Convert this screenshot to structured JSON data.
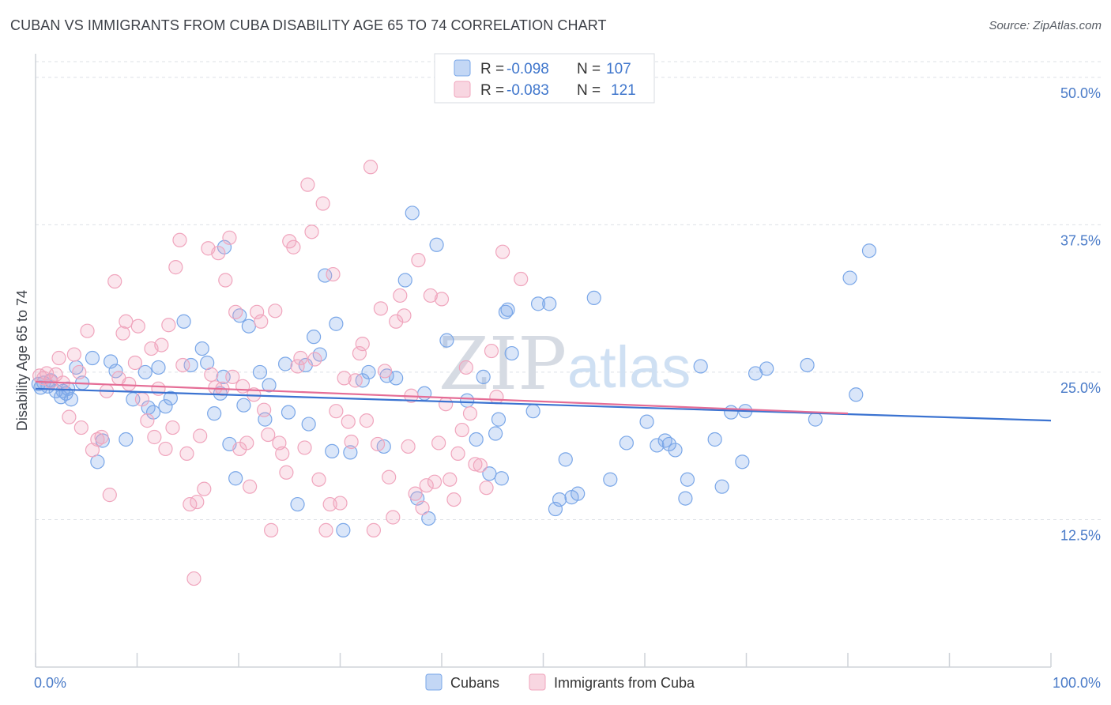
{
  "title": "CUBAN VS IMMIGRANTS FROM CUBA DISABILITY AGE 65 TO 74 CORRELATION CHART",
  "source": "Source: ZipAtlas.com",
  "watermark": {
    "zip": "ZIP",
    "atlas": "atlas"
  },
  "legend": {
    "rows": [
      {
        "r_label": "R =",
        "r_value": "-0.098",
        "n_label": "N =",
        "n_value": "107",
        "color": "#7aa7e8"
      },
      {
        "r_label": "R =",
        "r_value": "-0.083",
        "n_label": "N =",
        "n_value": "121",
        "color": "#f0a5bd"
      }
    ]
  },
  "chart_data": {
    "type": "scatter",
    "title": "CUBAN VS IMMIGRANTS FROM CUBA DISABILITY AGE 65 TO 74 CORRELATION CHART",
    "xlabel": "",
    "ylabel": "Disability Age 65 to 74",
    "xlim": [
      0,
      100
    ],
    "ylim": [
      0,
      52
    ],
    "x_tick_labels": [
      "0.0%",
      "100.0%"
    ],
    "y_ticks": [
      12.5,
      25.0,
      37.5,
      50.0
    ],
    "y_tick_labels": [
      "12.5%",
      "25.0%",
      "37.5%",
      "50.0%"
    ],
    "legend_position": "top-center",
    "series": [
      {
        "name": "Cubans",
        "color": "#7aa7e8",
        "trend": {
          "x0": 0,
          "y0": 23.6,
          "x1": 100,
          "y1": 20.9
        },
        "points": [
          [
            0.3,
            24.0
          ],
          [
            0.5,
            23.7
          ],
          [
            0.8,
            24.1
          ],
          [
            1.2,
            23.8
          ],
          [
            1.5,
            24.3
          ],
          [
            2.0,
            23.4
          ],
          [
            2.5,
            22.9
          ],
          [
            3.0,
            23.2
          ],
          [
            3.5,
            22.7
          ],
          [
            4.0,
            25.4
          ],
          [
            4.6,
            24.1
          ],
          [
            5.6,
            26.2
          ],
          [
            6.1,
            17.4
          ],
          [
            6.6,
            19.2
          ],
          [
            7.4,
            25.9
          ],
          [
            7.9,
            25.1
          ],
          [
            8.9,
            19.3
          ],
          [
            9.6,
            22.7
          ],
          [
            10.8,
            25.0
          ],
          [
            11.1,
            22.0
          ],
          [
            11.6,
            21.6
          ],
          [
            12.1,
            25.4
          ],
          [
            12.8,
            22.1
          ],
          [
            13.3,
            22.8
          ],
          [
            14.6,
            29.3
          ],
          [
            15.3,
            25.6
          ],
          [
            16.4,
            27.0
          ],
          [
            16.9,
            25.8
          ],
          [
            17.6,
            21.5
          ],
          [
            18.2,
            23.2
          ],
          [
            18.6,
            35.6
          ],
          [
            19.1,
            18.9
          ],
          [
            19.7,
            16.0
          ],
          [
            20.1,
            29.8
          ],
          [
            20.5,
            22.2
          ],
          [
            21.0,
            28.9
          ],
          [
            22.1,
            25.0
          ],
          [
            22.6,
            21.0
          ],
          [
            23.0,
            23.9
          ],
          [
            24.6,
            25.7
          ],
          [
            24.9,
            21.6
          ],
          [
            25.8,
            13.8
          ],
          [
            26.6,
            25.6
          ],
          [
            26.9,
            20.6
          ],
          [
            27.4,
            28.0
          ],
          [
            28.0,
            26.5
          ],
          [
            28.5,
            33.2
          ],
          [
            29.2,
            18.3
          ],
          [
            29.6,
            29.1
          ],
          [
            30.3,
            11.6
          ],
          [
            31.0,
            18.2
          ],
          [
            32.2,
            24.3
          ],
          [
            32.8,
            25.0
          ],
          [
            34.3,
            18.7
          ],
          [
            34.6,
            24.7
          ],
          [
            35.5,
            24.5
          ],
          [
            36.4,
            32.8
          ],
          [
            37.1,
            38.5
          ],
          [
            37.6,
            14.3
          ],
          [
            38.3,
            23.2
          ],
          [
            38.7,
            12.6
          ],
          [
            39.5,
            35.8
          ],
          [
            40.5,
            27.7
          ],
          [
            42.5,
            22.6
          ],
          [
            43.4,
            19.3
          ],
          [
            44.1,
            24.6
          ],
          [
            44.7,
            16.4
          ],
          [
            45.3,
            19.8
          ],
          [
            45.6,
            21.0
          ],
          [
            45.9,
            16.0
          ],
          [
            46.3,
            30.1
          ],
          [
            46.5,
            30.3
          ],
          [
            46.9,
            26.6
          ],
          [
            49.0,
            21.7
          ],
          [
            49.5,
            30.8
          ],
          [
            50.6,
            30.8
          ],
          [
            51.2,
            13.4
          ],
          [
            51.6,
            14.2
          ],
          [
            52.2,
            17.6
          ],
          [
            52.8,
            14.4
          ],
          [
            53.4,
            14.7
          ],
          [
            55.0,
            31.3
          ],
          [
            56.6,
            15.9
          ],
          [
            58.2,
            19.0
          ],
          [
            60.2,
            20.8
          ],
          [
            61.2,
            18.8
          ],
          [
            62.0,
            19.2
          ],
          [
            62.4,
            18.9
          ],
          [
            63.0,
            18.4
          ],
          [
            64.0,
            14.3
          ],
          [
            64.2,
            15.9
          ],
          [
            65.5,
            25.5
          ],
          [
            66.9,
            19.3
          ],
          [
            67.6,
            15.3
          ],
          [
            68.5,
            21.6
          ],
          [
            69.6,
            17.4
          ],
          [
            69.9,
            21.7
          ],
          [
            70.9,
            24.9
          ],
          [
            76.0,
            25.6
          ],
          [
            80.2,
            33.0
          ],
          [
            80.8,
            23.1
          ],
          [
            82.1,
            35.3
          ],
          [
            76.8,
            21.0
          ],
          [
            72.0,
            25.3
          ],
          [
            18.5,
            24.6
          ],
          [
            2.7,
            23.4
          ],
          [
            3.2,
            23.6
          ]
        ]
      },
      {
        "name": "Immigrants from Cuba",
        "color": "#f0a5bd",
        "trend": {
          "x0": 0,
          "y0": 24.2,
          "x1": 80,
          "y1": 21.5
        },
        "points": [
          [
            0.4,
            24.7
          ],
          [
            0.8,
            24.5
          ],
          [
            1.1,
            24.9
          ],
          [
            1.5,
            24.2
          ],
          [
            2.0,
            24.8
          ],
          [
            2.3,
            26.2
          ],
          [
            2.7,
            24.1
          ],
          [
            3.3,
            21.2
          ],
          [
            3.8,
            26.5
          ],
          [
            4.3,
            25.0
          ],
          [
            4.5,
            20.3
          ],
          [
            5.1,
            28.5
          ],
          [
            5.6,
            18.4
          ],
          [
            6.1,
            19.3
          ],
          [
            6.5,
            19.5
          ],
          [
            7.0,
            23.4
          ],
          [
            7.3,
            14.6
          ],
          [
            7.8,
            32.7
          ],
          [
            8.2,
            24.5
          ],
          [
            8.6,
            28.3
          ],
          [
            8.9,
            29.3
          ],
          [
            9.2,
            24.0
          ],
          [
            9.8,
            25.8
          ],
          [
            10.1,
            28.9
          ],
          [
            10.5,
            22.7
          ],
          [
            11.0,
            20.9
          ],
          [
            11.4,
            27.0
          ],
          [
            11.7,
            19.5
          ],
          [
            12.1,
            23.6
          ],
          [
            12.4,
            27.3
          ],
          [
            12.8,
            18.5
          ],
          [
            13.1,
            29.0
          ],
          [
            13.5,
            20.3
          ],
          [
            13.8,
            33.9
          ],
          [
            14.2,
            36.2
          ],
          [
            14.5,
            25.6
          ],
          [
            14.9,
            18.1
          ],
          [
            15.2,
            13.8
          ],
          [
            15.6,
            7.5
          ],
          [
            15.9,
            14.0
          ],
          [
            16.2,
            19.6
          ],
          [
            16.6,
            15.1
          ],
          [
            17.0,
            35.5
          ],
          [
            17.3,
            24.8
          ],
          [
            17.7,
            23.7
          ],
          [
            18.0,
            35.1
          ],
          [
            18.4,
            23.6
          ],
          [
            18.7,
            32.8
          ],
          [
            19.1,
            36.4
          ],
          [
            19.4,
            24.6
          ],
          [
            19.7,
            30.1
          ],
          [
            20.1,
            18.5
          ],
          [
            20.4,
            23.8
          ],
          [
            20.8,
            19.0
          ],
          [
            21.1,
            15.3
          ],
          [
            21.5,
            23.1
          ],
          [
            21.8,
            30.1
          ],
          [
            22.2,
            29.3
          ],
          [
            22.5,
            21.8
          ],
          [
            22.9,
            19.7
          ],
          [
            23.2,
            11.6
          ],
          [
            23.6,
            30.2
          ],
          [
            24.0,
            19.0
          ],
          [
            24.3,
            18.1
          ],
          [
            24.7,
            16.5
          ],
          [
            25.0,
            36.1
          ],
          [
            25.4,
            35.6
          ],
          [
            25.8,
            25.5
          ],
          [
            26.1,
            26.2
          ],
          [
            26.5,
            18.6
          ],
          [
            26.8,
            40.9
          ],
          [
            27.2,
            36.9
          ],
          [
            27.5,
            26.1
          ],
          [
            27.9,
            15.9
          ],
          [
            28.3,
            39.3
          ],
          [
            28.6,
            11.6
          ],
          [
            29.0,
            13.8
          ],
          [
            29.3,
            33.3
          ],
          [
            29.6,
            21.7
          ],
          [
            30.0,
            13.9
          ],
          [
            30.4,
            24.5
          ],
          [
            30.8,
            20.8
          ],
          [
            31.1,
            19.1
          ],
          [
            31.5,
            24.3
          ],
          [
            31.9,
            26.6
          ],
          [
            32.2,
            27.4
          ],
          [
            32.6,
            20.9
          ],
          [
            33.0,
            42.4
          ],
          [
            33.3,
            11.6
          ],
          [
            33.7,
            18.9
          ],
          [
            34.0,
            30.4
          ],
          [
            34.4,
            25.1
          ],
          [
            34.8,
            16.1
          ],
          [
            35.2,
            12.7
          ],
          [
            35.5,
            29.3
          ],
          [
            35.9,
            31.5
          ],
          [
            36.3,
            29.8
          ],
          [
            36.7,
            18.7
          ],
          [
            37.0,
            23.0
          ],
          [
            37.4,
            14.7
          ],
          [
            37.7,
            34.5
          ],
          [
            38.1,
            13.5
          ],
          [
            38.5,
            15.4
          ],
          [
            38.9,
            31.5
          ],
          [
            39.3,
            15.7
          ],
          [
            39.7,
            19.0
          ],
          [
            40.0,
            31.2
          ],
          [
            40.4,
            22.3
          ],
          [
            40.8,
            15.9
          ],
          [
            41.2,
            14.2
          ],
          [
            41.6,
            18.1
          ],
          [
            42.0,
            20.1
          ],
          [
            42.4,
            25.4
          ],
          [
            42.8,
            21.5
          ],
          [
            43.3,
            17.2
          ],
          [
            43.8,
            17.1
          ],
          [
            44.4,
            15.2
          ],
          [
            44.9,
            26.8
          ],
          [
            45.4,
            22.9
          ],
          [
            46.0,
            35.2
          ],
          [
            47.8,
            32.9
          ]
        ]
      }
    ]
  }
}
